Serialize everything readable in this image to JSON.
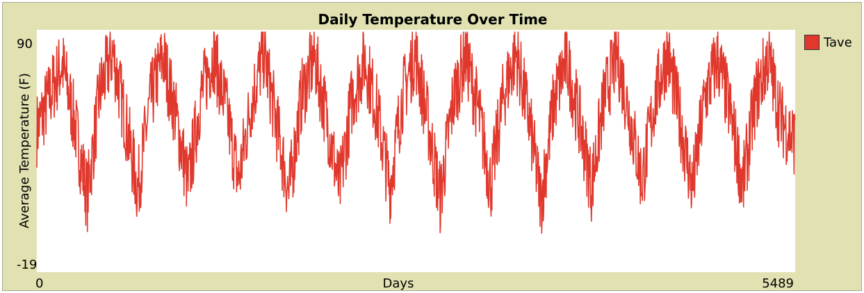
{
  "chart_data": {
    "type": "line",
    "title": "Daily Temperature Over Time",
    "xlabel": "Days",
    "ylabel": "Average Temperature (F)",
    "xlim": [
      0,
      5489
    ],
    "ylim": [
      -19,
      90
    ],
    "x_tick_labels": [
      "0",
      "5489"
    ],
    "y_tick_labels": [
      "90",
      "-19"
    ],
    "grid": false,
    "legend_position": "right",
    "series": [
      {
        "name": "Tave",
        "color": "#e0382c",
        "note_seasonal_envelope": "daily values oscillate yearly between roughly 5 and 90 F",
        "x": [
          0,
          91,
          183,
          274,
          365,
          456,
          548,
          639,
          730,
          821,
          913,
          1004,
          1095,
          1186,
          1278,
          1369,
          1460,
          1551,
          1643,
          1734,
          1825,
          1916,
          2008,
          2099,
          2190,
          2281,
          2373,
          2464,
          2555,
          2646,
          2738,
          2829,
          2920,
          3011,
          3103,
          3194,
          3285,
          3376,
          3468,
          3559,
          3650,
          3741,
          3833,
          3924,
          4015,
          4106,
          4198,
          4289,
          4380,
          4471,
          4563,
          4654,
          4745,
          4836,
          4928,
          5019,
          5110,
          5201,
          5293,
          5384,
          5489
        ],
        "y": [
          45,
          60,
          75,
          48,
          15,
          62,
          80,
          50,
          18,
          58,
          78,
          52,
          20,
          60,
          79,
          55,
          22,
          57,
          80,
          48,
          16,
          60,
          78,
          50,
          18,
          59,
          77,
          53,
          19,
          60,
          80,
          49,
          14,
          58,
          79,
          54,
          20,
          60,
          80,
          51,
          13,
          57,
          77,
          50,
          20,
          59,
          79,
          52,
          22,
          58,
          80,
          50,
          18,
          60,
          77,
          53,
          20,
          59,
          78,
          50,
          40
        ]
      }
    ]
  }
}
